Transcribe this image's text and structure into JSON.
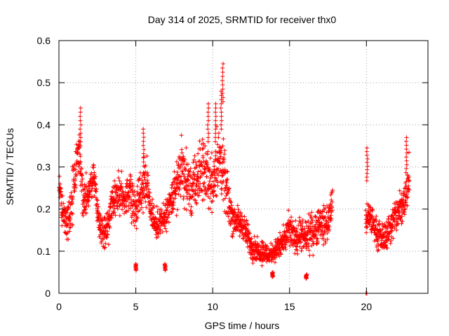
{
  "chart_data": {
    "type": "scatter",
    "title": "Day 314 of 2025, SRMTID for receiver thx0",
    "xlabel": "GPS time / hours",
    "ylabel": "SRMTID / TECUs",
    "xlim": [
      0,
      24
    ],
    "ylim": [
      0,
      0.6
    ],
    "xticks": [
      0,
      5,
      10,
      15,
      20
    ],
    "xtick_labels": [
      "0",
      "5",
      "10",
      "15",
      "20"
    ],
    "yticks": [
      0,
      0.1,
      0.2,
      0.3,
      0.4,
      0.5,
      0.6
    ],
    "ytick_labels": [
      "0",
      "0.1",
      "0.2",
      "0.3",
      "0.4",
      "0.5",
      "0.6"
    ],
    "grid": true,
    "marker": "+",
    "color": "#ff0000",
    "series": [
      {
        "name": "SRMTID",
        "trend": {
          "x": [
            0.0,
            0.2,
            0.5,
            0.8,
            1.1,
            1.3,
            1.6,
            2.0,
            2.3,
            2.6,
            3.0,
            3.3,
            3.6,
            4.0,
            4.3,
            4.6,
            5.0,
            5.3,
            5.6,
            6.0,
            6.3,
            6.6,
            7.0,
            7.3,
            7.6,
            8.0,
            8.3,
            8.6,
            9.0,
            9.3,
            9.6,
            10.0,
            10.3,
            10.6,
            11.0,
            11.3,
            11.6,
            12.0,
            12.3,
            12.6,
            13.0,
            13.3,
            13.6,
            14.0,
            14.3,
            14.6,
            15.0,
            15.3,
            15.6,
            16.0,
            16.3,
            16.6,
            17.0,
            17.3,
            17.6,
            17.8,
            19.95,
            20.0,
            20.2,
            20.4,
            20.7,
            21.0,
            21.3,
            21.6,
            22.0,
            22.3,
            22.6,
            22.8
          ],
          "y": [
            0.26,
            0.2,
            0.16,
            0.2,
            0.3,
            0.35,
            0.22,
            0.25,
            0.28,
            0.16,
            0.14,
            0.18,
            0.22,
            0.24,
            0.22,
            0.25,
            0.2,
            0.24,
            0.28,
            0.2,
            0.16,
            0.17,
            0.18,
            0.22,
            0.25,
            0.3,
            0.26,
            0.24,
            0.27,
            0.3,
            0.28,
            0.26,
            0.32,
            0.3,
            0.22,
            0.18,
            0.17,
            0.16,
            0.13,
            0.11,
            0.1,
            0.1,
            0.09,
            0.1,
            0.11,
            0.12,
            0.15,
            0.13,
            0.14,
            0.13,
            0.14,
            0.15,
            0.17,
            0.16,
            0.18,
            0.22,
            0.18,
            0.17,
            0.18,
            0.17,
            0.14,
            0.13,
            0.14,
            0.16,
            0.19,
            0.2,
            0.24,
            0.3
          ],
          "spread": [
            0.03,
            0.04,
            0.03,
            0.05,
            0.06,
            0.05,
            0.05,
            0.04,
            0.04,
            0.03,
            0.03,
            0.04,
            0.04,
            0.05,
            0.04,
            0.05,
            0.04,
            0.05,
            0.06,
            0.04,
            0.03,
            0.03,
            0.04,
            0.04,
            0.05,
            0.06,
            0.06,
            0.06,
            0.06,
            0.07,
            0.06,
            0.06,
            0.08,
            0.07,
            0.05,
            0.04,
            0.03,
            0.03,
            0.03,
            0.03,
            0.02,
            0.03,
            0.02,
            0.02,
            0.03,
            0.03,
            0.04,
            0.03,
            0.04,
            0.03,
            0.04,
            0.04,
            0.04,
            0.04,
            0.04,
            0.04,
            0.03,
            0.03,
            0.04,
            0.03,
            0.03,
            0.03,
            0.03,
            0.04,
            0.04,
            0.05,
            0.05,
            0.05
          ]
        },
        "peaks": [
          {
            "x": 1.4,
            "y": 0.44
          },
          {
            "x": 5.5,
            "y": 0.39
          },
          {
            "x": 9.7,
            "y": 0.45
          },
          {
            "x": 10.2,
            "y": 0.45
          },
          {
            "x": 10.65,
            "y": 0.545
          },
          {
            "x": 10.55,
            "y": 0.48
          },
          {
            "x": 22.6,
            "y": 0.37
          },
          {
            "x": 20.05,
            "y": 0.345
          },
          {
            "x": 20.0,
            "y": 0.0
          },
          {
            "x": 13.9,
            "y": 0.05
          },
          {
            "x": 16.1,
            "y": 0.045
          },
          {
            "x": 6.9,
            "y": 0.07
          },
          {
            "x": 5.0,
            "y": 0.07
          }
        ]
      }
    ]
  }
}
